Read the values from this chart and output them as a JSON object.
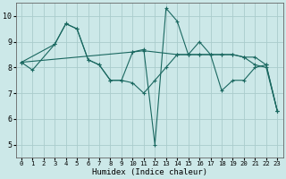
{
  "xlabel": "Humidex (Indice chaleur)",
  "bg_color": "#cce8e8",
  "grid_color": "#aacccc",
  "line_color": "#1a6860",
  "line1_x": [
    0,
    1,
    3,
    4,
    5,
    6,
    7,
    8,
    9,
    10,
    11,
    12,
    13,
    14,
    15,
    16,
    17,
    18,
    19,
    20,
    21,
    22,
    23
  ],
  "line1_y": [
    8.2,
    7.9,
    8.9,
    9.7,
    9.5,
    8.3,
    8.1,
    7.5,
    7.5,
    8.6,
    8.7,
    5.0,
    10.3,
    9.8,
    8.5,
    9.0,
    8.5,
    8.5,
    8.5,
    8.4,
    8.1,
    8.0,
    6.3
  ],
  "line2_x": [
    0,
    3,
    4,
    5,
    6,
    7,
    8,
    9,
    10,
    11,
    12,
    13,
    14,
    15,
    16,
    17,
    18,
    19,
    20,
    21,
    22,
    23
  ],
  "line2_y": [
    8.2,
    8.9,
    9.7,
    9.5,
    8.3,
    8.1,
    7.5,
    7.5,
    7.4,
    7.0,
    7.5,
    8.0,
    8.5,
    8.5,
    8.5,
    8.5,
    7.1,
    7.5,
    7.5,
    8.0,
    8.1,
    6.3
  ],
  "line3_x": [
    0,
    10,
    11,
    14,
    15,
    16,
    17,
    18,
    19,
    20,
    21,
    22,
    23
  ],
  "line3_y": [
    8.2,
    8.6,
    8.65,
    8.5,
    8.5,
    8.5,
    8.5,
    8.5,
    8.5,
    8.4,
    8.4,
    8.1,
    6.3
  ],
  "xlim": [
    -0.5,
    23.5
  ],
  "ylim": [
    4.5,
    10.5
  ],
  "xticks": [
    0,
    1,
    2,
    3,
    4,
    5,
    6,
    7,
    8,
    9,
    10,
    11,
    12,
    13,
    14,
    15,
    16,
    17,
    18,
    19,
    20,
    21,
    22,
    23
  ],
  "yticks": [
    5,
    6,
    7,
    8,
    9,
    10
  ]
}
